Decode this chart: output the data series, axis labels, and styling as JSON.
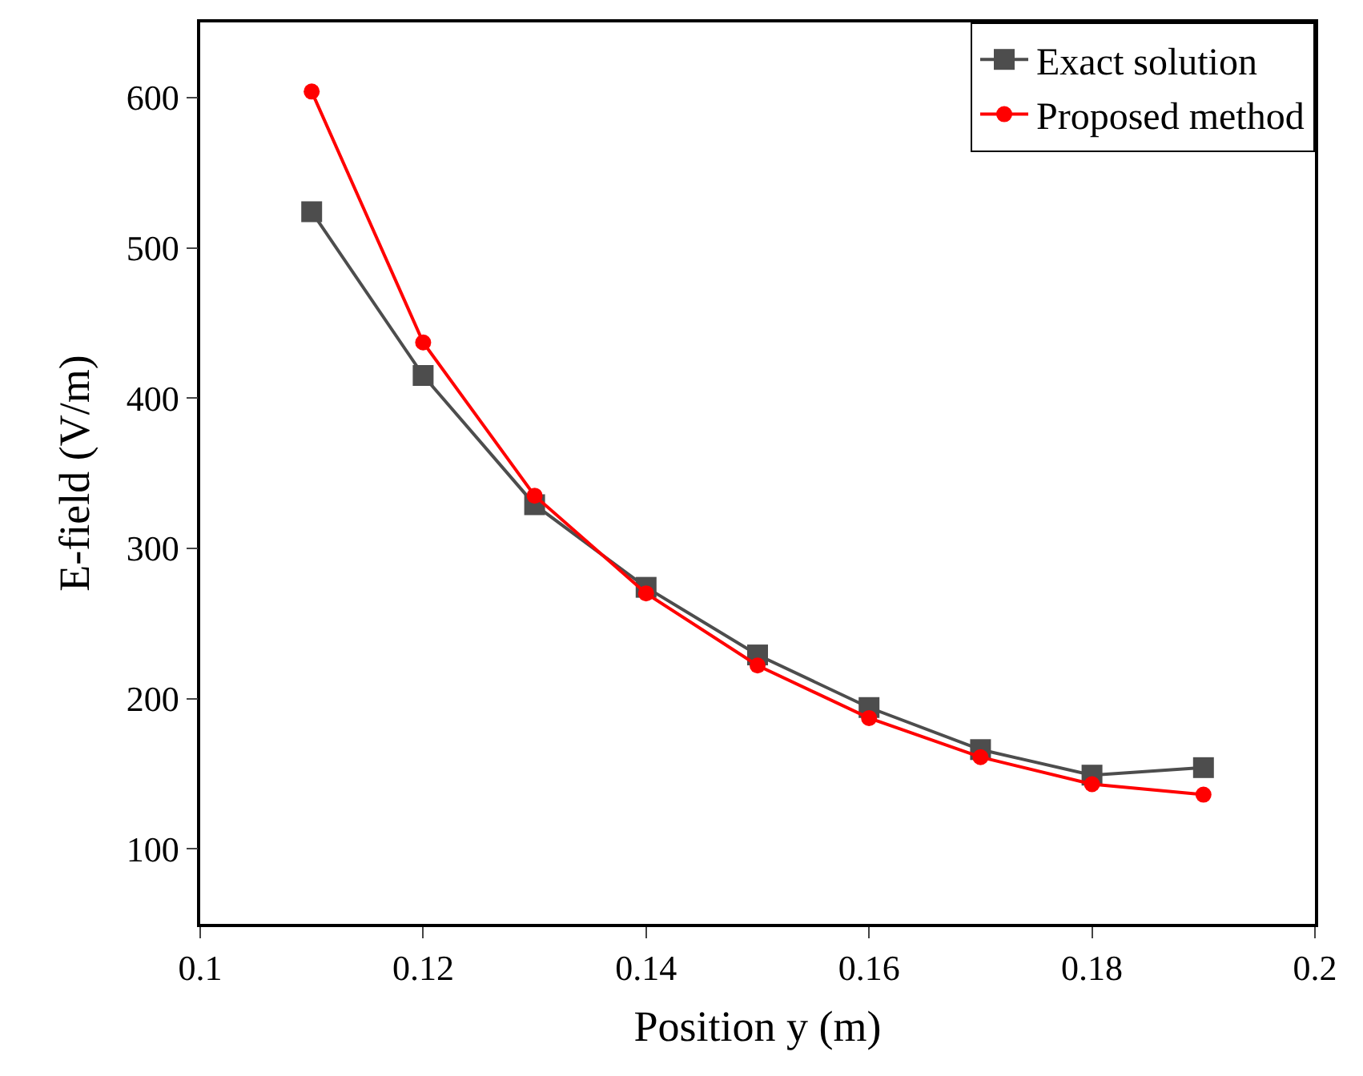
{
  "chart_data": {
    "type": "line",
    "xlabel": "Position y (m)",
    "ylabel": "E-field (V/m)",
    "x": [
      0.11,
      0.12,
      0.13,
      0.14,
      0.15,
      0.16,
      0.17,
      0.18,
      0.19
    ],
    "series": [
      {
        "name": "Exact solution",
        "color": "#4d4d4d",
        "marker": "square",
        "values": [
          524,
          415,
          329,
          274,
          229,
          194,
          166,
          149,
          154
        ]
      },
      {
        "name": "Proposed method",
        "color": "#ff0000",
        "marker": "circle",
        "values": [
          604,
          437,
          335,
          270,
          222,
          187,
          161,
          143,
          136
        ]
      }
    ],
    "xlim": [
      0.1,
      0.2
    ],
    "xticks": [
      0.1,
      0.12,
      0.14,
      0.16,
      0.18,
      0.2
    ],
    "ylim": [
      50,
      650
    ],
    "yticks": [
      100,
      200,
      300,
      400,
      500,
      600
    ],
    "legend": "top right",
    "line_style": "solid"
  }
}
